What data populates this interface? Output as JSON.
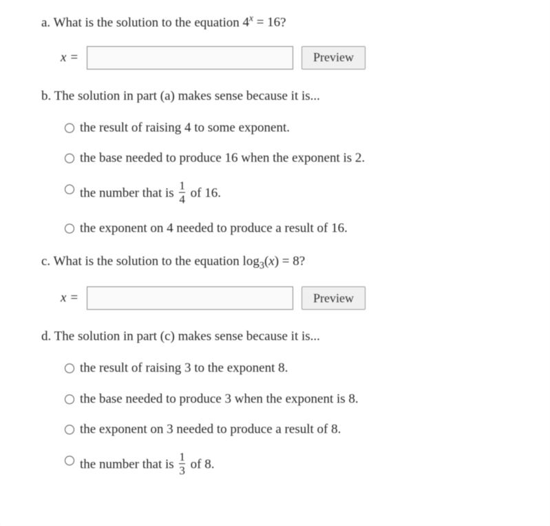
{
  "colors": {
    "text": "#282828",
    "page_bg": "#ffffff",
    "input_border": "#888888",
    "input_bg": "#fafafa",
    "button_bg": "#f0f0f0",
    "button_border": "#999999",
    "radio_border": "#555555"
  },
  "typography": {
    "body_fontsize": 19,
    "font_family": "Georgia, Times New Roman, serif"
  },
  "parts": {
    "a": {
      "letter": "a.",
      "prompt_pre": "What is the solution to the equation ",
      "equation": {
        "base": "4",
        "exponent": "x",
        "rhs": "16"
      },
      "prompt_post": "?",
      "var_label": "x =",
      "input_value": "",
      "preview_label": "Preview"
    },
    "b": {
      "letter": "b.",
      "prompt": "The solution in part (a) makes sense because it is...",
      "options": [
        "the result of raising 4 to some exponent.",
        "the base needed to produce 16 when the exponent is 2.",
        {
          "pre": "the number that is ",
          "frac_num": "1",
          "frac_den": "4",
          "post": " of 16."
        },
        "the exponent on 4 needed to produce a result of 16."
      ]
    },
    "c": {
      "letter": "c.",
      "prompt_pre": "What is the solution to the equation ",
      "equation": {
        "log_base": "3",
        "arg": "x",
        "rhs": "8"
      },
      "prompt_post": "?",
      "var_label": "x =",
      "input_value": "",
      "preview_label": "Preview"
    },
    "d": {
      "letter": "d.",
      "prompt": "The solution in part (c) makes sense because it is...",
      "options": [
        "the result of raising 3 to the exponent 8.",
        "the base needed to produce 3 when the exponent is 8.",
        "the exponent on 3 needed to produce a result of 8.",
        {
          "pre": "the number that is ",
          "frac_num": "1",
          "frac_den": "3",
          "post": " of 8."
        }
      ]
    }
  }
}
